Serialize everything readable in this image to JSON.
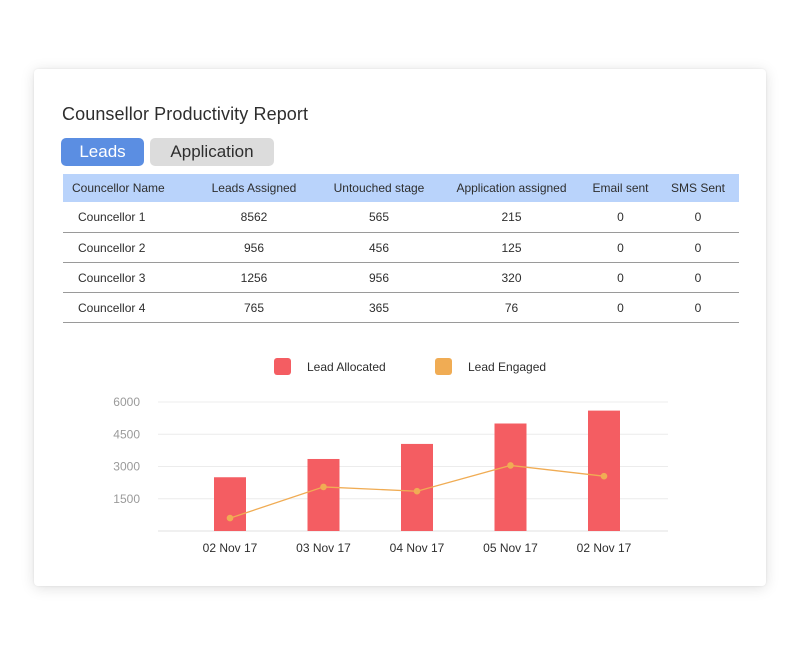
{
  "report": {
    "title": "Counsellor Productivity Report",
    "tabs": [
      "Leads",
      "Application"
    ]
  },
  "table": {
    "columns": [
      "Councellor Name",
      "Leads Assigned",
      "Untouched stage",
      "Application assigned",
      "Email sent",
      "SMS Sent"
    ],
    "rows": [
      [
        "Councellor 1",
        "8562",
        "565",
        "215",
        "0",
        "0"
      ],
      [
        "Councellor 2",
        "956",
        "456",
        "125",
        "0",
        "0"
      ],
      [
        "Councellor 3",
        "1256",
        "956",
        "320",
        "0",
        "0"
      ],
      [
        "Councellor 4",
        "765",
        "365",
        "76",
        "0",
        "0"
      ]
    ]
  },
  "colors": {
    "bar": "#f45d62",
    "line": "#f0ac54",
    "tab_active": "#5b8ee2",
    "tab_inactive": "#dcdcdc",
    "table_header": "#b9d3fb"
  },
  "chart_data": {
    "type": "bar",
    "title": "",
    "xlabel": "",
    "ylabel": "",
    "categories": [
      "02 Nov 17",
      "03 Nov 17",
      "04 Nov 17",
      "05 Nov 17",
      "02 Nov 17"
    ],
    "yticks": [
      "6000",
      "4500",
      "3000",
      "1500"
    ],
    "ylim": [
      0,
      6000
    ],
    "grid": true,
    "legend": "top-center",
    "series": [
      {
        "name": "Lead Allocated",
        "type": "bar",
        "values": [
          2500,
          3350,
          4050,
          5000,
          5600
        ]
      },
      {
        "name": "Lead Engaged",
        "type": "line",
        "values": [
          600,
          2050,
          1850,
          3050,
          2550
        ]
      }
    ]
  }
}
